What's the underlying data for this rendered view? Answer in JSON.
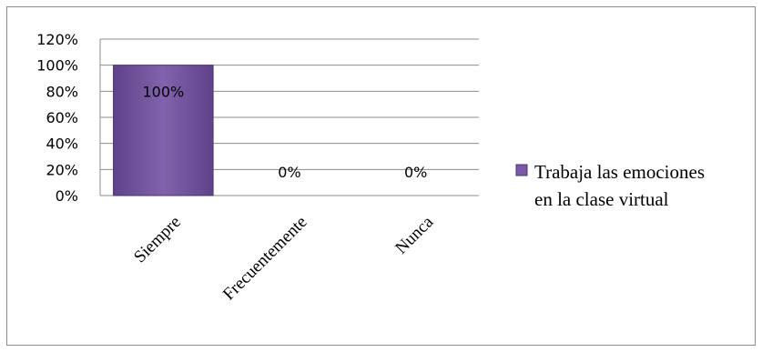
{
  "chart_data": {
    "type": "bar",
    "categories": [
      "Siempre",
      "Frecuentemente",
      "Nunca"
    ],
    "series": [
      {
        "name": "Trabaja las emociones en la clase virtual",
        "values": [
          100,
          0,
          0
        ],
        "color": "#7b5aa6"
      }
    ],
    "data_labels": [
      "100%",
      "0%",
      "0%"
    ],
    "y_ticks": [
      "0%",
      "20%",
      "40%",
      "60%",
      "80%",
      "100%",
      "120%"
    ],
    "ylim": [
      0,
      120
    ],
    "y_format": "percent",
    "grid": true,
    "legend_position": "right",
    "legend_lines": [
      "Trabaja las emociones",
      "en la clase virtual"
    ]
  }
}
